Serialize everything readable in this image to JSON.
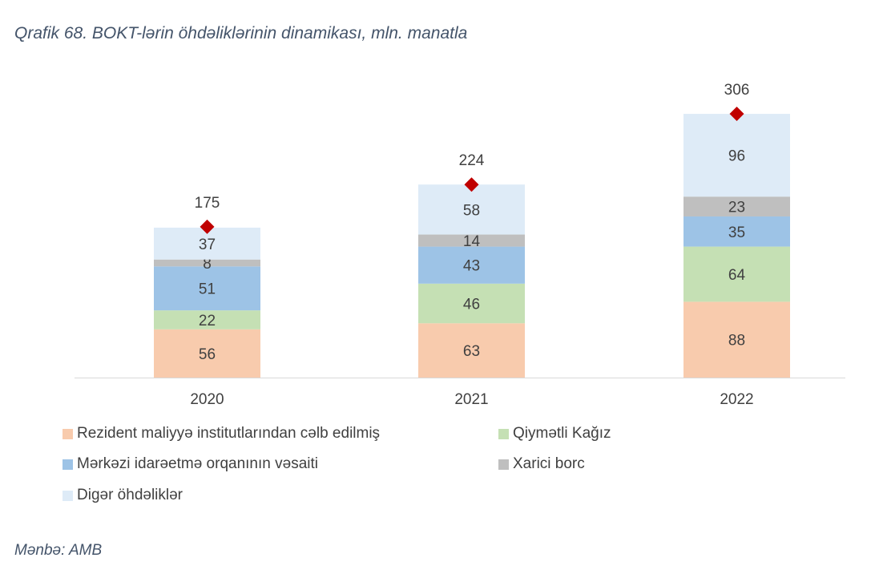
{
  "title": "Qrafik 68. BOKT-lərin öhdəliklərinin dinamikası, mln. manatla",
  "source": "Mənbə: AMB",
  "chart_data": {
    "type": "bar",
    "stacked": true,
    "categories": [
      "2020",
      "2021",
      "2022"
    ],
    "series": [
      {
        "name": "Rezident maliyyə institutlarından cəlb edilmiş",
        "color": "#F8CBAD",
        "values": [
          56,
          63,
          88
        ]
      },
      {
        "name": "Qiymətli Kağız",
        "color": "#C5E0B4",
        "values": [
          22,
          46,
          64
        ]
      },
      {
        "name": "Mərkəzi idarəetmə orqanının vəsaiti",
        "color": "#9DC3E6",
        "values": [
          51,
          43,
          35
        ]
      },
      {
        "name": "Xarici borc",
        "color": "#BFBFBF",
        "values": [
          8,
          14,
          23
        ]
      },
      {
        "name": "Digər öhdəliklər",
        "color": "#DEEBF7",
        "values": [
          37,
          58,
          96
        ]
      }
    ],
    "totals": [
      175,
      224,
      306
    ],
    "total_marker_color": "#C00000",
    "ylim": [
      0,
      320
    ],
    "grid": false,
    "legend_position": "bottom"
  }
}
